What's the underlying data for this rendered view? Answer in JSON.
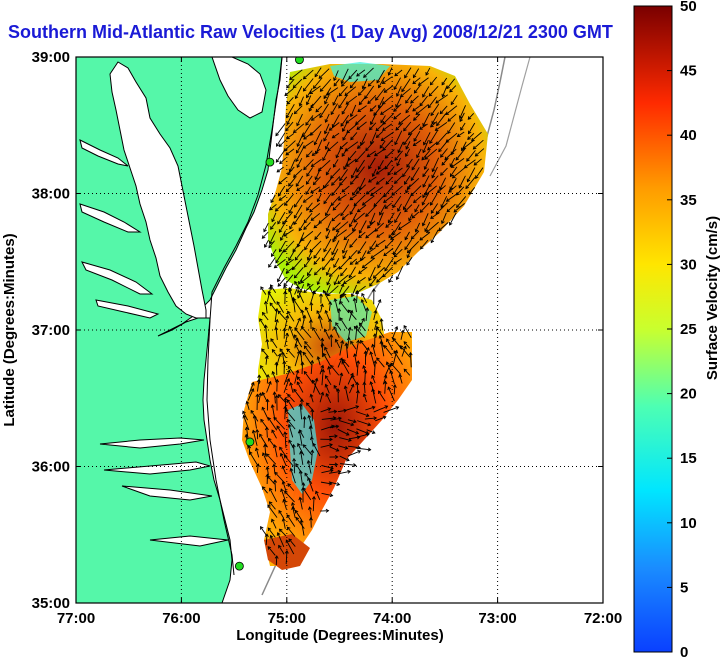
{
  "title": "Southern Mid-Atlantic Raw Velocities (1 Day Avg) 2008/12/21 2300 GMT",
  "chart_data": {
    "type": "map",
    "xlabel": "Longitude (Degrees:Minutes)",
    "ylabel": "Latitude (Degrees:Minutes)",
    "x_ticks": [
      "77:00",
      "76:00",
      "75:00",
      "74:00",
      "73:00",
      "72:00"
    ],
    "y_ticks": [
      "39:00",
      "38:00",
      "37:00",
      "36:00",
      "35:00"
    ],
    "xlim": [
      -77,
      -72
    ],
    "ylim": [
      35,
      39
    ],
    "grid": true,
    "colorbar": {
      "label": "Surface Velocity (cm/s)",
      "range": [
        0,
        50
      ],
      "ticks": [
        "0",
        "5",
        "10",
        "15",
        "20",
        "25",
        "30",
        "35",
        "40",
        "45",
        "50"
      ]
    },
    "colors": {
      "land": "#55f7a9",
      "water": "#ffffff",
      "coast": "#000000",
      "station": "#22dd22"
    },
    "stations": [
      {
        "lon": -74.88,
        "lat": 38.98
      },
      {
        "lon": -75.16,
        "lat": 38.23
      },
      {
        "lon": -75.35,
        "lat": 36.18
      },
      {
        "lon": -75.45,
        "lat": 35.27
      }
    ]
  }
}
